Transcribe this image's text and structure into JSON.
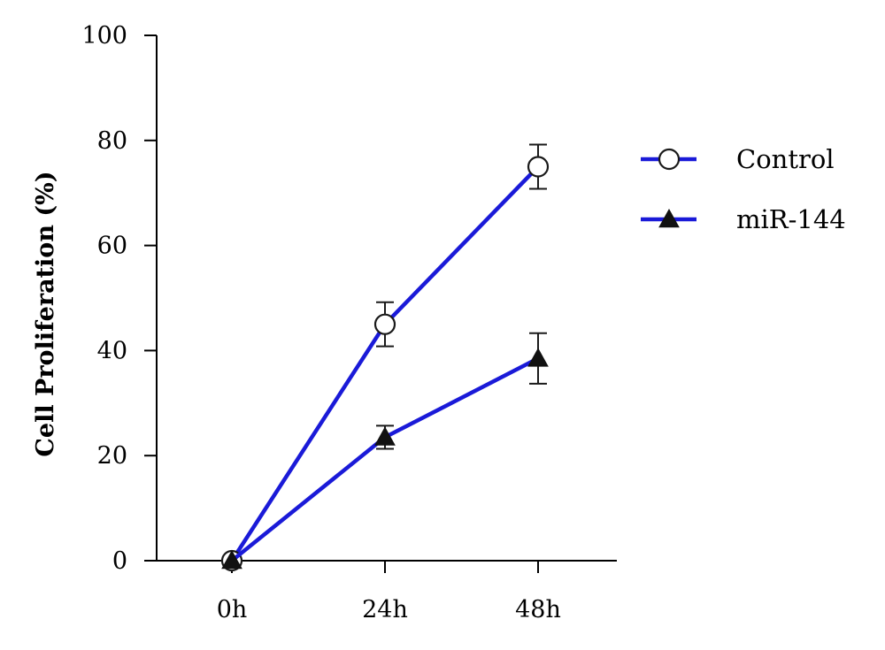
{
  "chart_data": {
    "type": "line",
    "title": "",
    "xlabel": "",
    "ylabel": "Cell Proliferation (%)",
    "categories": [
      "0h",
      "24h",
      "48h"
    ],
    "ylim": [
      0,
      100
    ],
    "yticks": [
      0,
      20,
      40,
      60,
      80,
      100
    ],
    "grid": false,
    "legend_position": "right",
    "series": [
      {
        "name": "Control",
        "marker": "open-circle",
        "color": "#1a1ad8",
        "values": [
          0,
          45,
          75
        ],
        "errors": [
          0,
          4.2,
          4.2
        ]
      },
      {
        "name": "miR-144",
        "marker": "filled-triangle",
        "color": "#1a1ad8",
        "values": [
          0,
          23.5,
          38.5
        ],
        "errors": [
          0,
          2.2,
          4.8
        ]
      }
    ]
  }
}
